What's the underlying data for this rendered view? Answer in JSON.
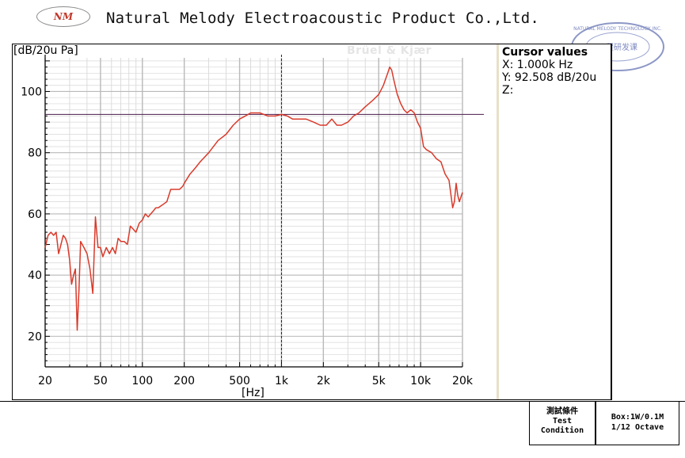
{
  "header": {
    "logo_text": "NM",
    "company_name": "Natural Melody Electroacoustic Product Co.,Ltd.",
    "stamp_text_outer": "NATURAL MELODY TECHNOLOGY INC.",
    "stamp_text_inner": "工程研发课"
  },
  "chart_data": {
    "type": "line",
    "title": "",
    "xlabel": "[Hz]",
    "ylabel": "[dB/20u Pa]",
    "xscale": "log",
    "xlim": [
      20,
      20000
    ],
    "ylim": [
      10,
      111
    ],
    "x_ticks": [
      20,
      50,
      100,
      200,
      500,
      1000,
      2000,
      5000,
      10000,
      20000
    ],
    "x_tick_labels": [
      "20",
      "50",
      "100",
      "200",
      "500",
      "1k",
      "2k",
      "5k",
      "10k",
      "20k"
    ],
    "y_ticks": [
      20,
      40,
      60,
      80,
      100
    ],
    "y_tick_labels": [
      "20",
      "40",
      "60",
      "80",
      "100"
    ],
    "grid": true,
    "watermark": "Brüel & Kjær",
    "cursor": {
      "x": 1000,
      "y": 92.508
    },
    "series": [
      {
        "color": "#d93a2b",
        "x": [
          20,
          21,
          22,
          23,
          24,
          25,
          26,
          27,
          28,
          29,
          30,
          31,
          32,
          33,
          34,
          35,
          36,
          38,
          40,
          42,
          44,
          46,
          48,
          50,
          52,
          55,
          58,
          61,
          64,
          67,
          70,
          74,
          78,
          82,
          86,
          90,
          95,
          100,
          105,
          110,
          115,
          120,
          125,
          130,
          140,
          150,
          160,
          170,
          185,
          195,
          200,
          220,
          240,
          260,
          300,
          350,
          400,
          450,
          500,
          550,
          600,
          700,
          800,
          900,
          1000,
          1100,
          1200,
          1300,
          1400,
          1500,
          1700,
          1900,
          2100,
          2300,
          2500,
          2700,
          3000,
          3300,
          3600,
          4000,
          4500,
          5000,
          5400,
          5800,
          6000,
          6200,
          6400,
          6800,
          7200,
          7600,
          8000,
          8500,
          9000,
          9500,
          10000,
          10500,
          11000,
          12000,
          13000,
          14000,
          15000,
          16000,
          17000,
          17500,
          18000,
          18500,
          19000,
          20000
        ],
        "y": [
          49,
          53,
          54,
          53,
          54,
          47,
          50,
          53,
          52,
          50,
          45,
          37,
          40,
          42,
          22,
          35,
          51,
          49,
          47,
          42,
          34,
          59,
          49,
          49,
          46,
          49,
          47,
          49,
          47,
          52,
          51,
          51,
          50,
          56,
          55,
          54,
          57,
          58,
          60,
          59,
          60,
          61,
          62,
          62,
          63,
          64,
          68,
          68,
          68,
          69,
          70,
          73,
          75,
          77,
          80,
          84,
          86,
          89,
          91,
          92,
          93,
          93,
          92,
          92,
          92.5,
          92,
          91,
          91,
          91,
          91,
          90,
          89,
          89,
          91,
          89,
          89,
          90,
          92,
          93,
          95,
          97,
          99,
          102,
          106,
          108,
          107,
          104,
          99,
          96,
          94,
          93,
          94,
          93,
          90,
          88,
          82,
          81,
          80,
          78,
          77,
          73,
          71,
          62,
          64,
          70,
          66,
          64,
          67
        ]
      }
    ]
  },
  "cursor_panel": {
    "title": "Cursor values",
    "x_readout": "X: 1.000k Hz",
    "y_readout": "Y: 92.508 dB/20u",
    "z_readout": "Z:"
  },
  "test_condition": {
    "label_cn": "測試條件",
    "label_en_1": "Test",
    "label_en_2": "Condition",
    "value_1": "Box:1W/0.1M",
    "value_2": "1/12  Octave"
  }
}
